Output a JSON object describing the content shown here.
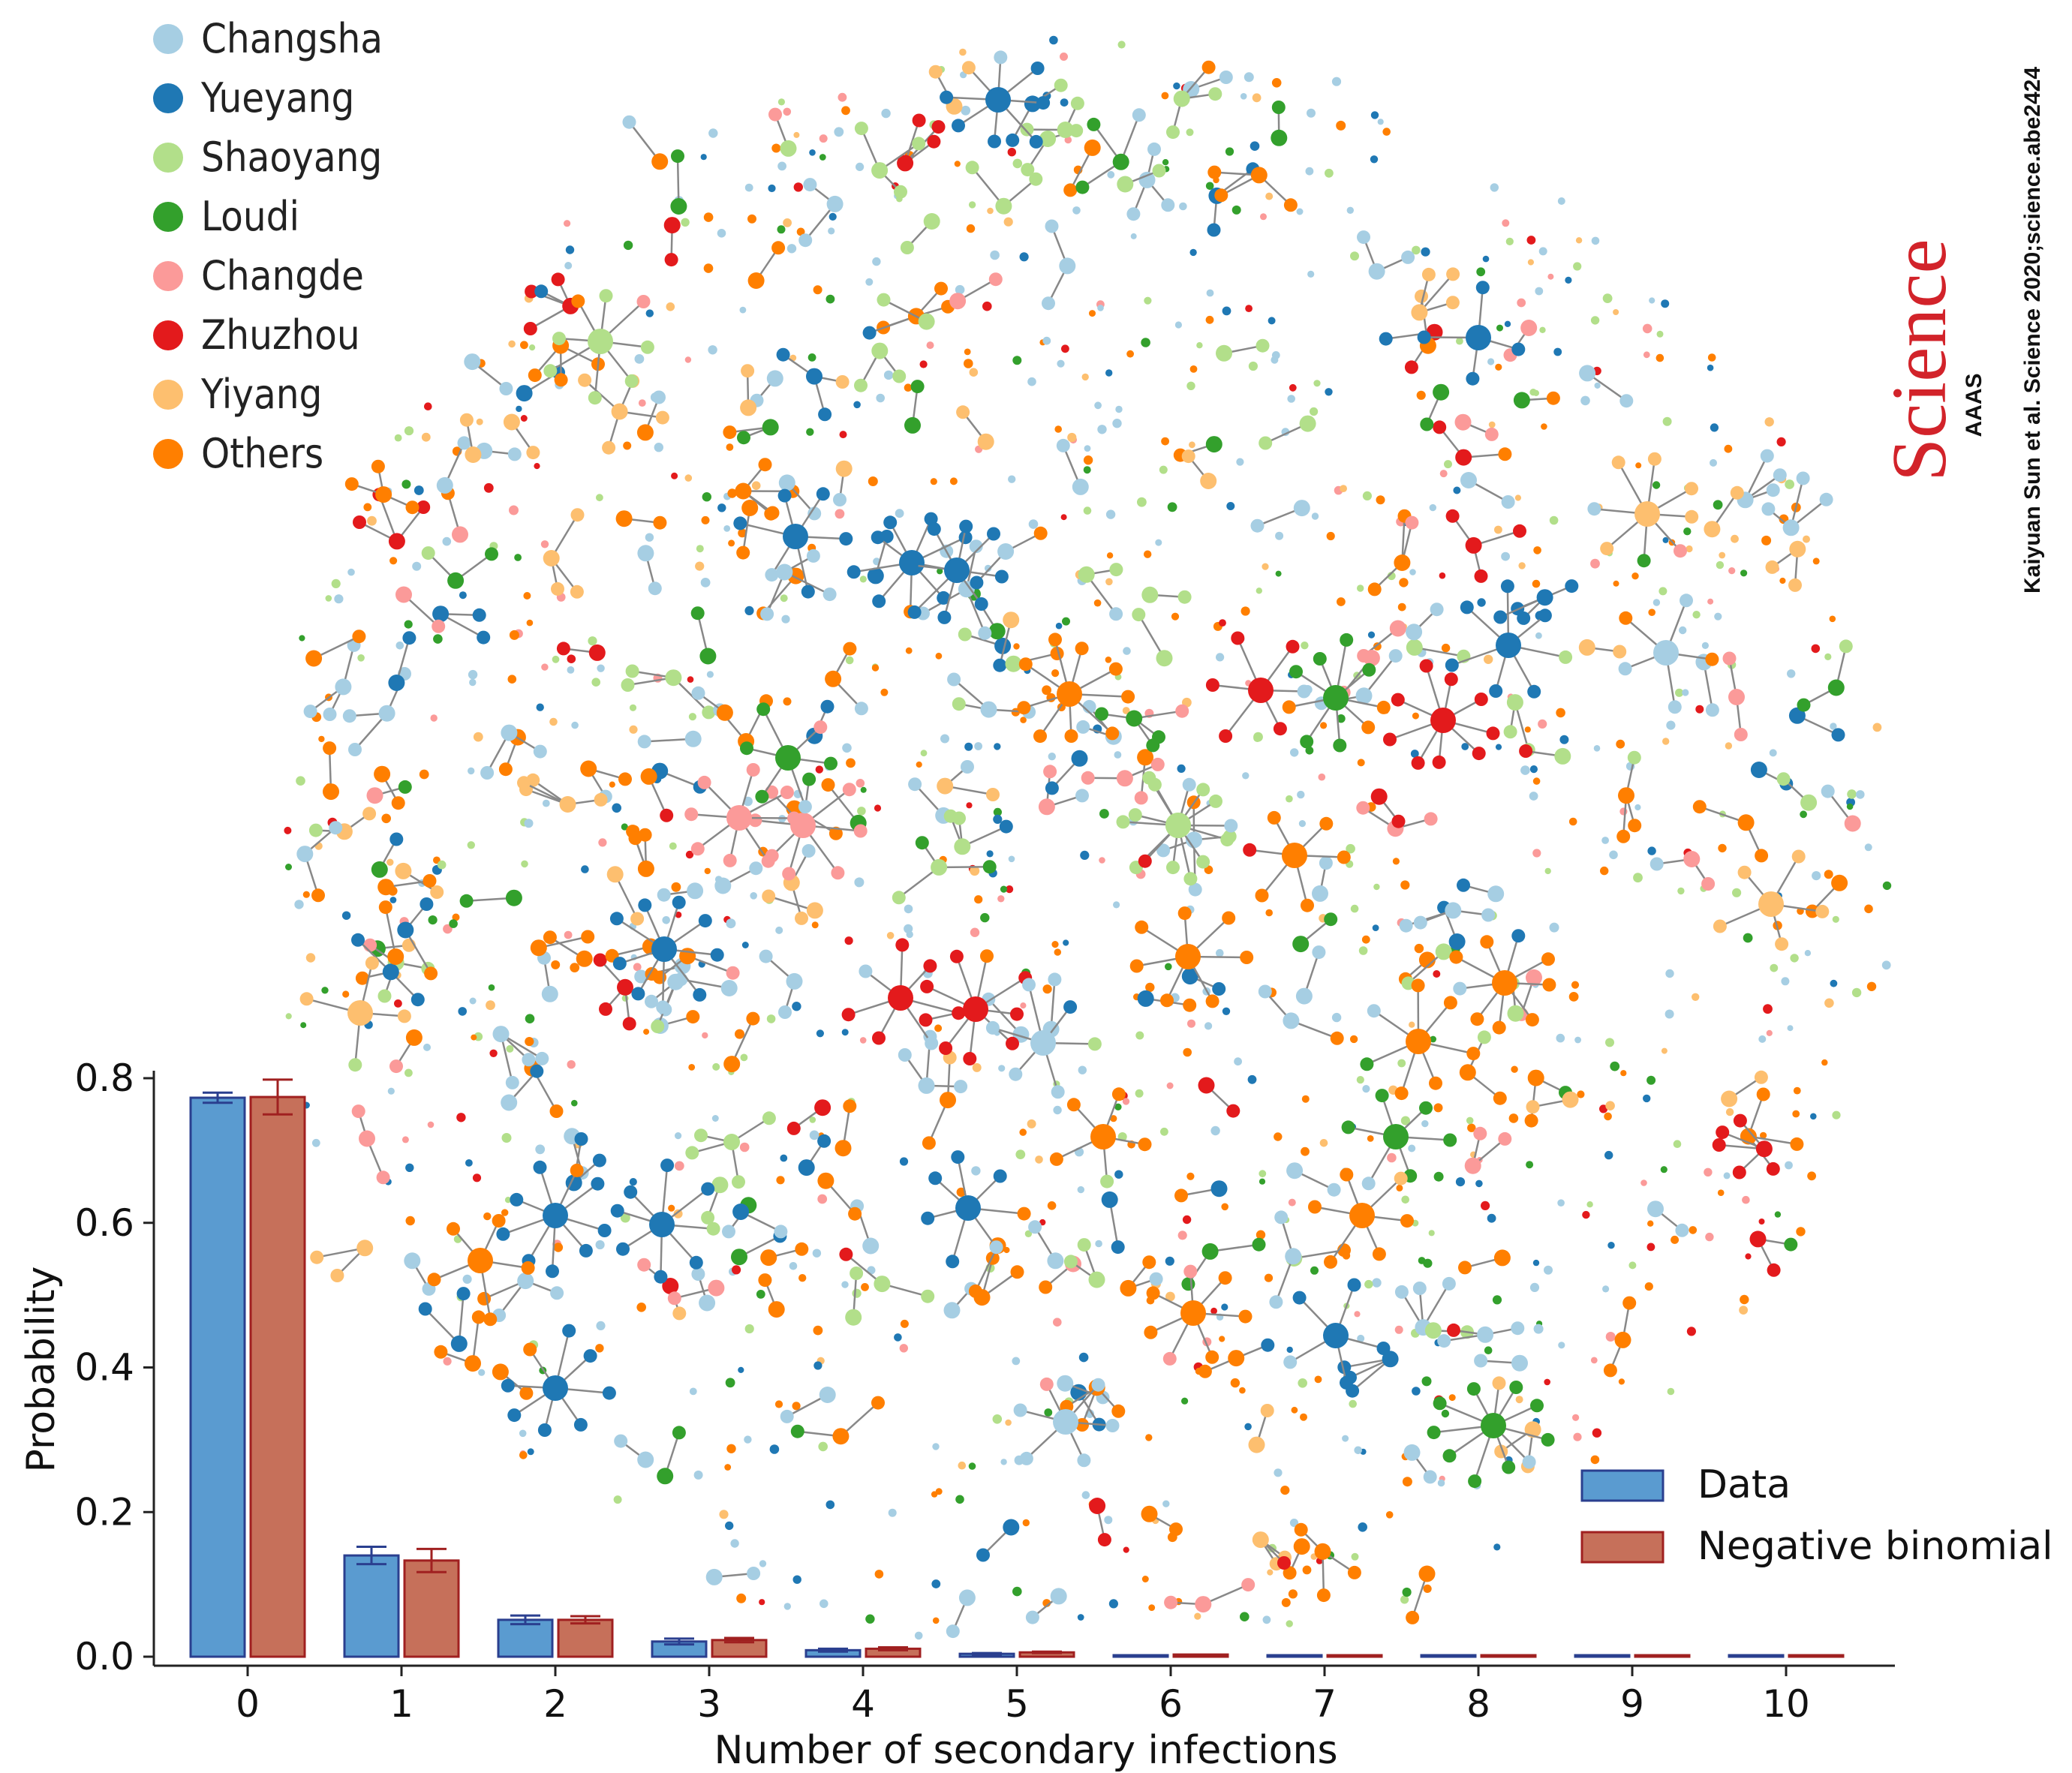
{
  "network_legend": [
    {
      "label": "Changsha",
      "color": "#a6cee3"
    },
    {
      "label": "Yueyang",
      "color": "#1f78b4"
    },
    {
      "label": "Shaoyang",
      "color": "#b2df8a"
    },
    {
      "label": "Loudi",
      "color": "#33a02c"
    },
    {
      "label": "Changde",
      "color": "#fb9a99"
    },
    {
      "label": "Zhuzhou",
      "color": "#e31a1c"
    },
    {
      "label": "Yiyang",
      "color": "#fdbf6f"
    },
    {
      "label": "Others",
      "color": "#ff7f00"
    }
  ],
  "branding": {
    "journal": "Science",
    "publisher": "AAAS",
    "citation": "Kaiyuan Sun et al. Science 2020;science.abe2424",
    "journal_color": "#d2232a"
  },
  "chart_data": {
    "type": "bar",
    "xlabel": "Number of secondary infections",
    "ylabel": "Probability",
    "ylim": [
      0,
      0.8
    ],
    "yticks": [
      "0.0",
      "0.2",
      "0.4",
      "0.6",
      "0.8"
    ],
    "categories": [
      "0",
      "1",
      "2",
      "3",
      "4",
      "5",
      "6",
      "7",
      "8",
      "9",
      "10"
    ],
    "legend_position": "bottom-right",
    "series": [
      {
        "name": "Data",
        "color": "#5a9bd0",
        "edge": "#2a3f8f",
        "values": [
          0.773,
          0.14,
          0.051,
          0.021,
          0.009,
          0.004,
          0.002,
          0.002,
          0.002,
          0.002,
          0.001
        ],
        "err": [
          0.007,
          0.012,
          0.006,
          0.004,
          0.002,
          0.001,
          0.0,
          0.0,
          0.0,
          0.0,
          0.0
        ]
      },
      {
        "name": "Negative binomial",
        "color": "#c6705a",
        "edge": "#a02020",
        "values": [
          0.774,
          0.133,
          0.051,
          0.023,
          0.011,
          0.006,
          0.003,
          0.002,
          0.001,
          0.001,
          0.001
        ],
        "err": [
          0.024,
          0.016,
          0.005,
          0.003,
          0.002,
          0.001,
          0.0,
          0.0,
          0.0,
          0.0,
          0.0
        ]
      }
    ]
  }
}
